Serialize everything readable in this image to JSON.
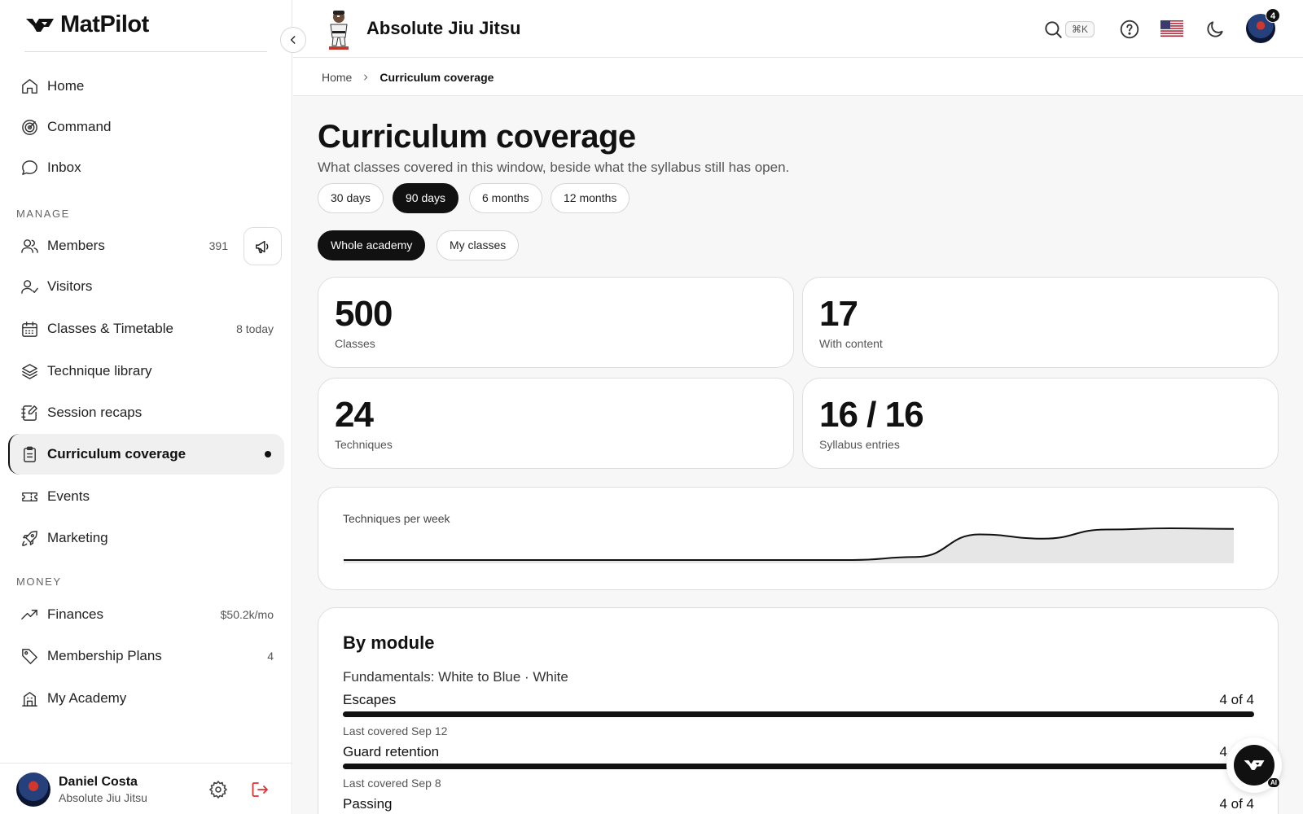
{
  "app": {
    "name": "MatPilot"
  },
  "sidebar": {
    "nav_top": [
      {
        "label": "Home",
        "icon": "home-icon"
      },
      {
        "label": "Command",
        "icon": "target-icon"
      },
      {
        "label": "Inbox",
        "icon": "chat-bubble-icon"
      }
    ],
    "manage_heading": "MANAGE",
    "manage": [
      {
        "label": "Members",
        "meta": "391",
        "icon": "users-icon"
      },
      {
        "label": "Visitors",
        "meta": "",
        "icon": "user-check-icon"
      },
      {
        "label": "Classes & Timetable",
        "meta": "8 today",
        "icon": "calendar-icon"
      },
      {
        "label": "Technique library",
        "meta": "",
        "icon": "layers-icon"
      },
      {
        "label": "Session recaps",
        "meta": "",
        "icon": "notebook-pen-icon"
      },
      {
        "label": "Curriculum coverage",
        "meta": "",
        "icon": "clipboard-list-icon",
        "active": true
      },
      {
        "label": "Events",
        "meta": "",
        "icon": "ticket-icon"
      },
      {
        "label": "Marketing",
        "meta": "",
        "icon": "rocket-icon"
      }
    ],
    "money_heading": "MONEY",
    "money": [
      {
        "label": "Finances",
        "meta": "$50.2k/mo",
        "icon": "trending-up-icon"
      },
      {
        "label": "Membership Plans",
        "meta": "4",
        "icon": "tag-icon"
      },
      {
        "label": "My Academy",
        "meta": "",
        "icon": "building-icon"
      }
    ],
    "user": {
      "name": "Daniel Costa",
      "org": "Absolute Jiu Jitsu"
    }
  },
  "topbar": {
    "academy_name": "Absolute Jiu Jitsu",
    "search_shortcut": "⌘K",
    "notifications": "4"
  },
  "breadcrumb": {
    "home": "Home",
    "current": "Curriculum coverage"
  },
  "page": {
    "title": "Curriculum coverage",
    "subtitle": "What classes covered in this window, beside what the syllabus still has open.",
    "range_options": [
      "30 days",
      "90 days",
      "6 months",
      "12 months"
    ],
    "range_selected": "90 days",
    "scope_options": [
      "Whole academy",
      "My classes"
    ],
    "scope_selected": "Whole academy"
  },
  "stats": [
    {
      "value": "500",
      "label": "Classes"
    },
    {
      "value": "17",
      "label": "With content"
    },
    {
      "value": "24",
      "label": "Techniques"
    },
    {
      "value": "16 / 16",
      "label": "Syllabus entries"
    }
  ],
  "chart_data": {
    "type": "area",
    "title": "Techniques per week",
    "values": [
      0,
      0,
      0,
      0,
      0,
      0,
      0,
      0,
      0,
      0.5,
      4.2,
      3.5,
      5.0,
      5.2,
      5.1
    ]
  },
  "modules": {
    "heading": "By module",
    "group": "Fundamentals: White to Blue · White",
    "topics": [
      {
        "name": "Escapes",
        "count": "4 of 4",
        "covered": 4,
        "total": 4,
        "last": "Last covered Sep 12"
      },
      {
        "name": "Guard retention",
        "count": "4 of 4",
        "covered": 4,
        "total": 4,
        "last": "Last covered Sep 8"
      },
      {
        "name": "Passing",
        "count": "4 of 4",
        "covered": 4,
        "total": 4,
        "last": ""
      }
    ]
  },
  "colors": {
    "accent": "#111111",
    "danger": "#e03131",
    "muted": "#555555"
  }
}
